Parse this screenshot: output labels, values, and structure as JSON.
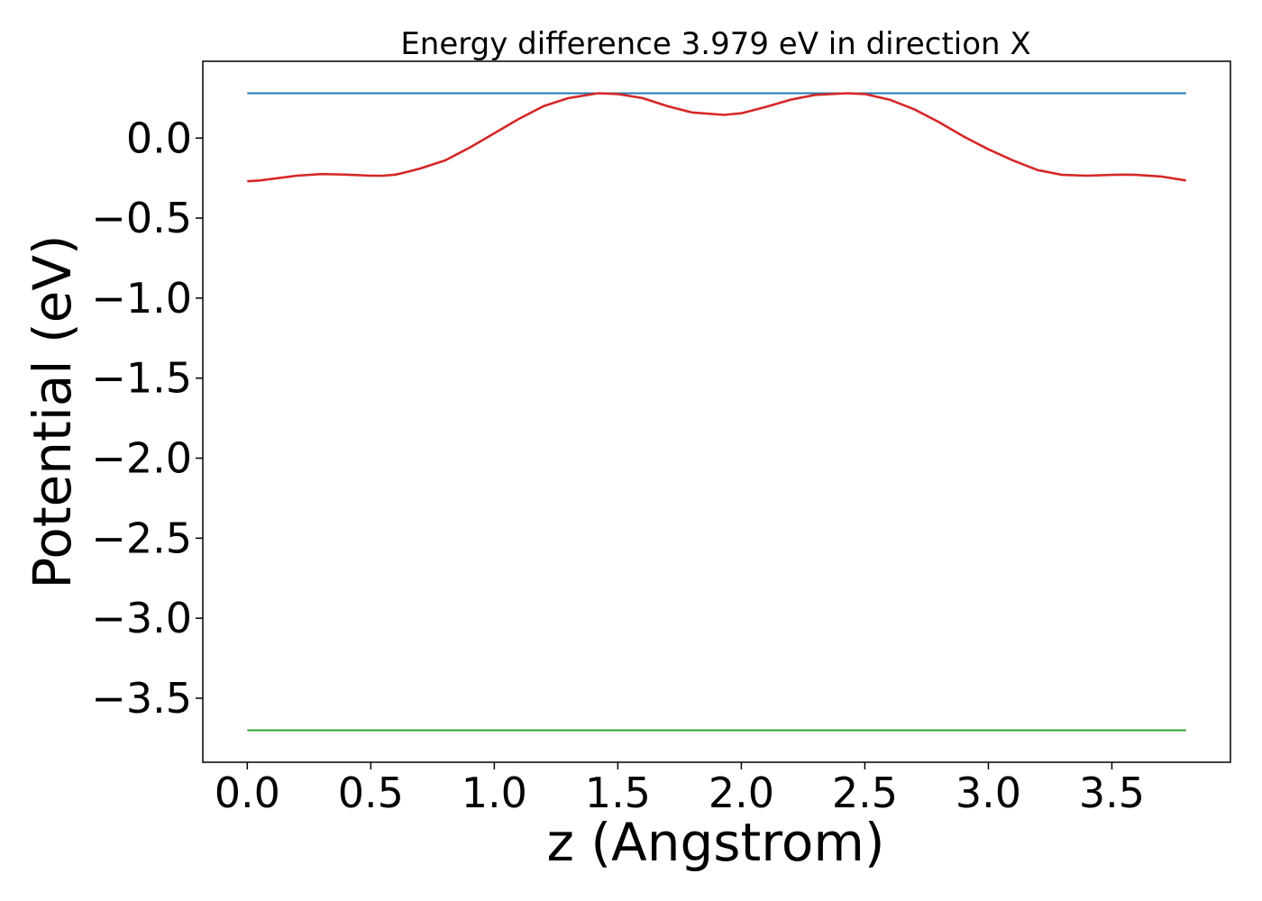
{
  "chart_data": {
    "type": "line",
    "title": "Energy difference 3.979 eV in direction X",
    "xlabel": "z (Angstrom)",
    "ylabel": "Potential (eV)",
    "xlim": [
      -0.18,
      3.98
    ],
    "ylim": [
      -3.9,
      0.48
    ],
    "xticks": [
      0.0,
      0.5,
      1.0,
      1.5,
      2.0,
      2.5,
      3.0,
      3.5
    ],
    "xtick_labels": [
      "0.0",
      "0.5",
      "1.0",
      "1.5",
      "2.0",
      "2.5",
      "3.0",
      "3.5"
    ],
    "yticks": [
      0.0,
      -0.5,
      -1.0,
      -1.5,
      -2.0,
      -2.5,
      -3.0,
      -3.5
    ],
    "ytick_labels": [
      "0.0",
      "−0.5",
      "−1.0",
      "−1.5",
      "−2.0",
      "−2.5",
      "−3.0",
      "−3.5"
    ],
    "grid": false,
    "series": [
      {
        "color": "#1f77b4",
        "x": [
          0.0,
          3.8
        ],
        "y": [
          0.28,
          0.28
        ]
      },
      {
        "color": "#d62728",
        "x": [
          0.0,
          0.05,
          0.1,
          0.15,
          0.2,
          0.3,
          0.4,
          0.5,
          0.55,
          0.6,
          0.65,
          0.7,
          0.8,
          0.9,
          1.0,
          1.1,
          1.2,
          1.3,
          1.42,
          1.5,
          1.6,
          1.7,
          1.8,
          1.93,
          2.0,
          2.1,
          2.2,
          2.3,
          2.43,
          2.5,
          2.6,
          2.7,
          2.8,
          2.9,
          3.0,
          3.1,
          3.2,
          3.3,
          3.4,
          3.5,
          3.55,
          3.6,
          3.7,
          3.8
        ],
        "y": [
          -0.27,
          -0.265,
          -0.255,
          -0.245,
          -0.235,
          -0.225,
          -0.228,
          -0.235,
          -0.235,
          -0.228,
          -0.21,
          -0.19,
          -0.14,
          -0.06,
          0.03,
          0.12,
          0.2,
          0.25,
          0.28,
          0.275,
          0.25,
          0.2,
          0.16,
          0.145,
          0.155,
          0.195,
          0.24,
          0.27,
          0.28,
          0.275,
          0.24,
          0.18,
          0.1,
          0.01,
          -0.07,
          -0.14,
          -0.2,
          -0.23,
          -0.235,
          -0.23,
          -0.228,
          -0.23,
          -0.24,
          -0.265
        ]
      },
      {
        "color": "#2ca02c",
        "x": [
          0.0,
          3.8
        ],
        "y": [
          -3.7,
          -3.7
        ]
      }
    ]
  }
}
